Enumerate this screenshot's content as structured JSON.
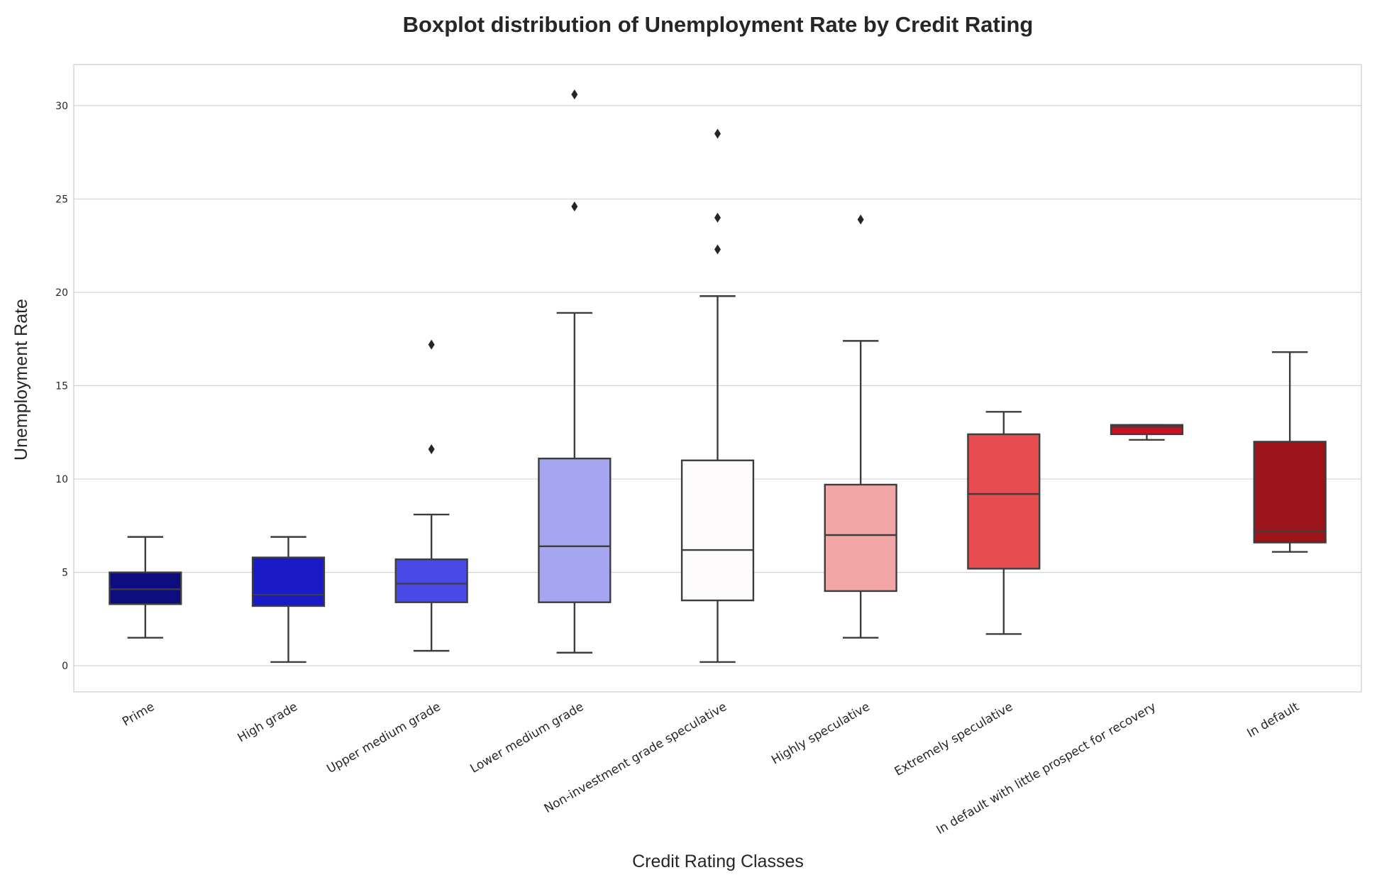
{
  "chart_data": {
    "type": "box",
    "title": "Boxplot distribution of Unemployment Rate by Credit Rating",
    "xlabel": "Credit Rating Classes",
    "ylabel": "Unemployment Rate",
    "ylim": [
      -1.4,
      32.2
    ],
    "yticks": [
      0,
      5,
      10,
      15,
      20,
      25,
      30
    ],
    "grid": true,
    "categories": [
      "Prime",
      "High grade",
      "Upper medium grade",
      "Lower medium grade",
      "Non-investment grade speculative",
      "Highly speculative",
      "Extremely speculative",
      "In default with little prospect for recovery",
      "In default"
    ],
    "boxes": [
      {
        "category": "Prime",
        "whisker_low": 1.5,
        "q1": 3.3,
        "median": 4.1,
        "q3": 5.0,
        "whisker_high": 6.9,
        "outliers": [],
        "color": "#0d0d80"
      },
      {
        "category": "High grade",
        "whisker_low": 0.2,
        "q1": 3.2,
        "median": 3.8,
        "q3": 5.8,
        "whisker_high": 6.9,
        "outliers": [],
        "color": "#1a1ac7"
      },
      {
        "category": "Upper medium grade",
        "whisker_low": 0.8,
        "q1": 3.4,
        "median": 4.4,
        "q3": 5.7,
        "whisker_high": 8.1,
        "outliers": [
          11.6,
          17.2
        ],
        "color": "#4949e6"
      },
      {
        "category": "Lower medium grade",
        "whisker_low": 0.7,
        "q1": 3.4,
        "median": 6.4,
        "q3": 11.1,
        "whisker_high": 18.9,
        "outliers": [
          24.6,
          30.6
        ],
        "color": "#a5a5f0"
      },
      {
        "category": "Non-investment grade speculative",
        "whisker_low": 0.2,
        "q1": 3.5,
        "median": 6.2,
        "q3": 11.0,
        "whisker_high": 19.8,
        "outliers": [
          22.3,
          24.0,
          28.5
        ],
        "color": "#fefbfc"
      },
      {
        "category": "Highly speculative",
        "whisker_low": 1.5,
        "q1": 4.0,
        "median": 7.0,
        "q3": 9.7,
        "whisker_high": 17.4,
        "outliers": [
          23.9
        ],
        "color": "#f2a6a6"
      },
      {
        "category": "Extremely speculative",
        "whisker_low": 1.7,
        "q1": 5.2,
        "median": 9.2,
        "q3": 12.4,
        "whisker_high": 13.6,
        "outliers": [],
        "color": "#e64b4e"
      },
      {
        "category": "In default with little prospect for recovery",
        "whisker_low": 12.1,
        "q1": 12.4,
        "median": 12.8,
        "q3": 12.9,
        "whisker_high": 12.9,
        "outliers": [],
        "color": "#cc1020"
      },
      {
        "category": "In default",
        "whisker_low": 6.1,
        "q1": 6.6,
        "median": 7.2,
        "q3": 12.0,
        "whisker_high": 16.8,
        "outliers": [],
        "color": "#9b141b"
      }
    ],
    "colors": {
      "box_edge": "#3d3d3d",
      "grid": "#d3d3d3",
      "frame": "#cccccc",
      "outlier": "#262626",
      "text": "#262626"
    }
  }
}
